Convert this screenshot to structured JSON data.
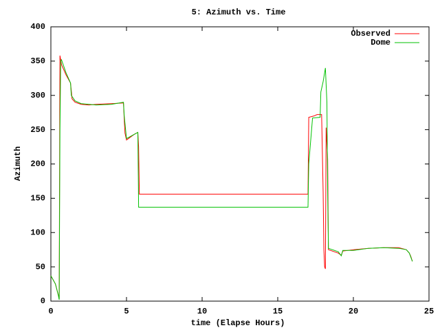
{
  "chart_data": {
    "type": "line",
    "title": "5: Azimuth vs. Time",
    "x_label": "time (Elapse Hours)",
    "y_label": "Azimuth",
    "xlim": [
      0,
      25
    ],
    "xticks": [
      0,
      5,
      10,
      15,
      20,
      25
    ],
    "ylim": [
      0,
      400
    ],
    "yticks": [
      0,
      50,
      100,
      150,
      200,
      250,
      300,
      350,
      400
    ],
    "grid": false,
    "legend_position": "top-right",
    "series": [
      {
        "name": "Observed",
        "color": "#ff0000",
        "x": [
          0,
          0.3,
          0.5,
          0.55,
          0.6,
          0.7,
          1.0,
          1.3,
          1.4,
          1.6,
          2,
          2.5,
          3,
          4,
          4.8,
          4.85,
          4.9,
          5,
          5.5,
          5.75,
          5.8,
          5.85,
          17,
          17.05,
          17.4,
          17.6,
          17.9,
          18,
          18.05,
          18.1,
          18.15,
          18.2,
          18.3,
          18.35,
          19,
          19.2,
          19.3,
          20,
          21,
          22,
          23,
          23.5,
          23.7,
          23.8,
          23.9
        ],
        "values": [
          37,
          25,
          8,
          3,
          358,
          345,
          330,
          318,
          295,
          290,
          287,
          286,
          287,
          288,
          289,
          265,
          245,
          235,
          243,
          246,
          225,
          156,
          156,
          268,
          270,
          272,
          272,
          160,
          75,
          50,
          47,
          253,
          207,
          75,
          70,
          67,
          73,
          75,
          77,
          78,
          78,
          75,
          70,
          65,
          58
        ]
      },
      {
        "name": "Dome",
        "color": "#00c000",
        "x": [
          0,
          0.3,
          0.5,
          0.55,
          0.6,
          0.65,
          0.7,
          1.0,
          1.3,
          1.35,
          1.6,
          2,
          3,
          4,
          4.8,
          4.85,
          5,
          5.5,
          5.75,
          5.8,
          17,
          17.05,
          17.3,
          17.8,
          17.85,
          18,
          18.15,
          18.25,
          18.3,
          18.35,
          19,
          19.2,
          19.3,
          20,
          21,
          22,
          23,
          23.5,
          23.7,
          23.9
        ],
        "values": [
          37,
          25,
          8,
          2,
          250,
          350,
          352,
          333,
          318,
          300,
          292,
          288,
          286,
          287,
          290,
          270,
          237,
          243,
          246,
          137,
          137,
          200,
          267,
          268,
          305,
          320,
          340,
          290,
          160,
          77,
          72,
          66,
          74,
          74,
          77,
          78,
          77,
          75,
          70,
          58
        ]
      }
    ]
  }
}
